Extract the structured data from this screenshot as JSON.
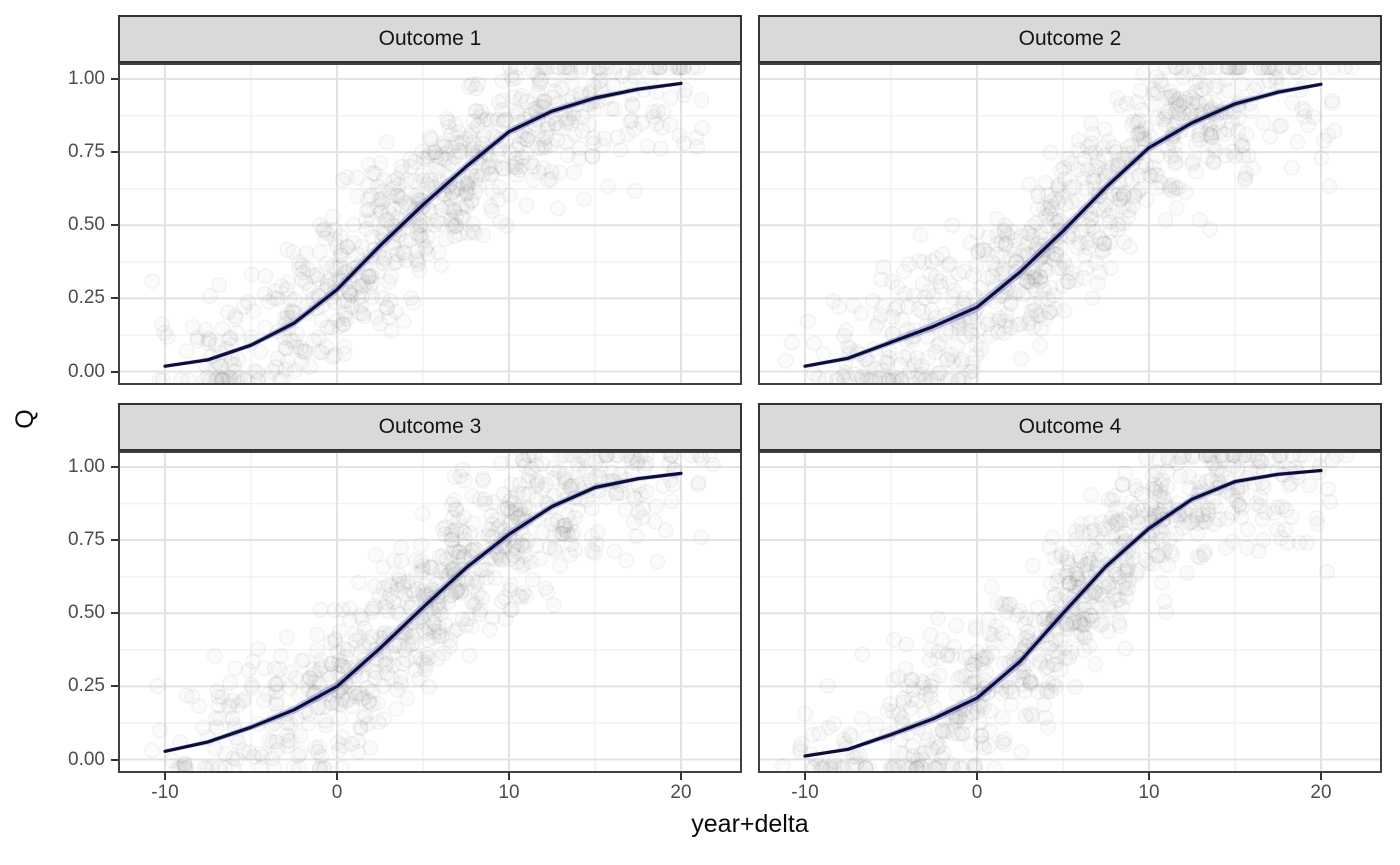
{
  "figure": {
    "background": "#ffffff"
  },
  "chart_data": {
    "type": "scatter",
    "facet_grid": "2x2",
    "title": "",
    "x": {
      "label": "year+delta",
      "tick_labels": [
        "-10",
        "0",
        "10",
        "20"
      ],
      "tick_values": [
        -10,
        0,
        10,
        20
      ],
      "minor_values": [
        -5,
        5,
        15
      ],
      "range": [
        -12.7,
        23.6
      ]
    },
    "y": {
      "label": "Q",
      "tick_labels": [
        "1.00",
        "0.75",
        "0.50",
        "0.25",
        "0.00"
      ],
      "tick_values": [
        1,
        0.75,
        0.5,
        0.25,
        0
      ],
      "minor_values": [
        0.875,
        0.625,
        0.375,
        0.125
      ],
      "range": [
        -0.046,
        1.055
      ]
    },
    "legend": "none",
    "grid": "major+minor",
    "facets": [
      {
        "label": "Outcome 1",
        "curve_x": [
          -10,
          -7.5,
          -5,
          -2.5,
          0,
          2.5,
          5,
          7.5,
          10,
          12.5,
          15,
          17.5,
          20
        ],
        "curve_q": [
          0.018,
          0.04,
          0.09,
          0.165,
          0.28,
          0.43,
          0.57,
          0.7,
          0.82,
          0.89,
          0.935,
          0.965,
          0.985
        ],
        "ribbon_halfwidth": [
          0.006,
          0.007,
          0.009,
          0.013,
          0.016,
          0.018,
          0.018,
          0.016,
          0.014,
          0.012,
          0.01,
          0.008,
          0.006
        ],
        "scatter_seed": 11
      },
      {
        "label": "Outcome 2",
        "curve_x": [
          -10,
          -7.5,
          -5,
          -2.5,
          0,
          2.5,
          5,
          7.5,
          10,
          12.5,
          15,
          17.5,
          20
        ],
        "curve_q": [
          0.018,
          0.045,
          0.1,
          0.155,
          0.22,
          0.34,
          0.48,
          0.63,
          0.765,
          0.85,
          0.915,
          0.955,
          0.982
        ],
        "ribbon_halfwidth": [
          0.006,
          0.008,
          0.011,
          0.015,
          0.018,
          0.019,
          0.019,
          0.017,
          0.015,
          0.013,
          0.011,
          0.009,
          0.006
        ],
        "scatter_seed": 22
      },
      {
        "label": "Outcome 3",
        "curve_x": [
          -10,
          -7.5,
          -5,
          -2.5,
          0,
          2.5,
          5,
          7.5,
          10,
          12.5,
          15,
          17.5,
          20
        ],
        "curve_q": [
          0.028,
          0.06,
          0.11,
          0.17,
          0.25,
          0.38,
          0.52,
          0.655,
          0.77,
          0.865,
          0.93,
          0.96,
          0.978
        ],
        "ribbon_halfwidth": [
          0.006,
          0.008,
          0.01,
          0.014,
          0.017,
          0.018,
          0.018,
          0.016,
          0.015,
          0.012,
          0.01,
          0.008,
          0.006
        ],
        "scatter_seed": 33
      },
      {
        "label": "Outcome 4",
        "curve_x": [
          -10,
          -7.5,
          -5,
          -2.5,
          0,
          2.5,
          5,
          7.5,
          10,
          12.5,
          15,
          17.5,
          20
        ],
        "curve_q": [
          0.012,
          0.035,
          0.085,
          0.14,
          0.21,
          0.335,
          0.5,
          0.66,
          0.79,
          0.89,
          0.95,
          0.975,
          0.988
        ],
        "ribbon_halfwidth": [
          0.005,
          0.007,
          0.01,
          0.014,
          0.017,
          0.018,
          0.018,
          0.016,
          0.014,
          0.012,
          0.009,
          0.007,
          0.005
        ],
        "scatter_seed": 44
      }
    ],
    "scatter": {
      "n_per_facet": 700,
      "x_min": -11.6,
      "x_max": 22.6,
      "noise_scale": 0.27,
      "point_radius": 7.2
    },
    "style": {
      "line_color": "#0d0d3c",
      "ribbon_color": "rgba(120,128,200,0.5)",
      "strip_bg": "#d9d9d9",
      "strip_border": "#333333",
      "panel_border": "#404040",
      "grid_major": "#e3e3e3",
      "grid_minor": "#f2f2f2",
      "tick_color": "#333333",
      "tick_label_color": "#4d4d4d",
      "axis_title_color": "#0a0a0a",
      "point_stroke": "rgba(64,64,64,0.055)",
      "point_fill": "rgba(128,128,128,0.035)"
    }
  }
}
